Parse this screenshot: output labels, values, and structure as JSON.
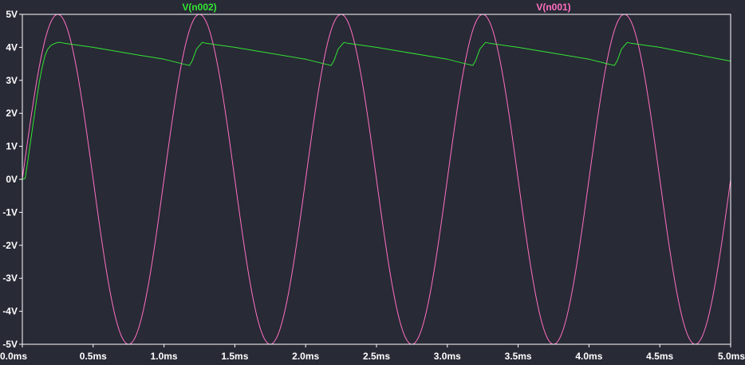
{
  "chart_data": {
    "type": "line",
    "xlabel": "",
    "ylabel": "",
    "xlim": [
      0,
      5.0
    ],
    "ylim": [
      -5,
      5
    ],
    "x_ticks": [
      0,
      0.5,
      1.0,
      1.5,
      2.0,
      2.5,
      3.0,
      3.5,
      4.0,
      4.5,
      5.0
    ],
    "x_tick_labels": [
      "0.0ms",
      "0.5ms",
      "1.0ms",
      "1.5ms",
      "2.0ms",
      "2.5ms",
      "3.0ms",
      "3.5ms",
      "4.0ms",
      "4.5ms",
      "5.0ms"
    ],
    "y_ticks": [
      5,
      4,
      3,
      2,
      1,
      0,
      -1,
      -2,
      -3,
      -4,
      -5
    ],
    "y_tick_labels": [
      "5V",
      "4V",
      "3V",
      "2V",
      "1V",
      "0V",
      "-1V",
      "-2V",
      "-3V",
      "-4V",
      "-5V"
    ],
    "grid": false,
    "legend_placement": "top",
    "series": [
      {
        "name": "V(n002)",
        "color": "#33e533",
        "x": [
          0,
          0.02,
          0.04,
          0.06,
          0.08,
          0.1,
          0.12,
          0.14,
          0.16,
          0.18,
          0.2,
          0.22,
          0.25,
          0.27,
          0.3,
          0.5,
          0.8,
          1.0,
          1.15,
          1.18,
          1.2,
          1.23,
          1.27,
          1.3,
          1.5,
          2.0,
          2.15,
          2.18,
          2.2,
          2.23,
          2.27,
          2.3,
          2.5,
          3.0,
          3.15,
          3.18,
          3.2,
          3.23,
          3.27,
          3.3,
          3.5,
          4.0,
          4.15,
          4.18,
          4.2,
          4.23,
          4.27,
          4.3,
          4.5,
          5.0
        ],
        "values": [
          0,
          0.03,
          0.6,
          1.2,
          1.8,
          2.4,
          2.95,
          3.4,
          3.75,
          3.95,
          4.05,
          4.1,
          4.15,
          4.15,
          4.12,
          4.0,
          3.78,
          3.64,
          3.48,
          3.45,
          3.6,
          3.95,
          4.15,
          4.12,
          4.0,
          3.64,
          3.48,
          3.45,
          3.6,
          3.95,
          4.15,
          4.12,
          4.0,
          3.64,
          3.48,
          3.45,
          3.6,
          3.95,
          4.15,
          4.12,
          4.0,
          3.64,
          3.48,
          3.45,
          3.6,
          3.95,
          4.15,
          4.12,
          4.0,
          3.58
        ]
      },
      {
        "name": "V(n001)",
        "color": "#ff6fc0",
        "function": "5*sin(2*pi*1kHz*t)",
        "amplitude": 5,
        "frequency_khz": 1,
        "x": [
          0,
          0.25,
          0.5,
          0.75,
          1.0,
          1.25,
          1.5,
          1.75,
          2.0,
          2.25,
          2.5,
          2.75,
          3.0,
          3.25,
          3.5,
          3.75,
          4.0,
          4.25,
          4.5,
          4.75,
          5.0
        ],
        "values": [
          0,
          5,
          0,
          -5,
          0,
          5,
          0,
          -5,
          0,
          5,
          0,
          -5,
          0,
          5,
          0,
          -5,
          0,
          5,
          0,
          -5,
          0
        ]
      }
    ],
    "colors": {
      "background": "#282a36",
      "axis": "#ffffff"
    }
  }
}
